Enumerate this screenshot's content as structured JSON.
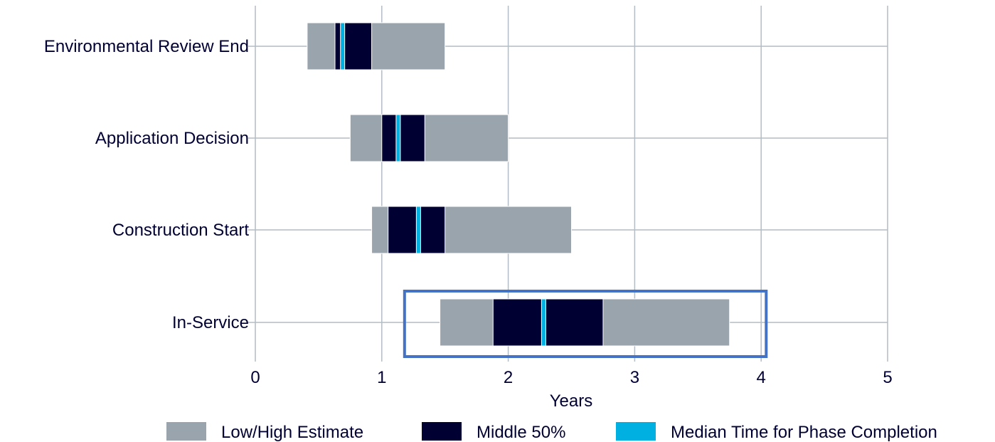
{
  "chart_data": {
    "type": "bar",
    "orientation": "horizontal",
    "categories": [
      "Environmental Review End",
      "Application Decision",
      "Construction Start",
      "In-Service"
    ],
    "xlabel": "Years",
    "ylabel": "",
    "xlim": [
      0,
      5
    ],
    "xticks": [
      0,
      1,
      2,
      3,
      4,
      5
    ],
    "grid": true,
    "legend_placement": "bottom",
    "series": [
      {
        "name": "Low/High Estimate",
        "color": "#9aa4ad",
        "ranges": [
          [
            0.41,
            1.5
          ],
          [
            0.75,
            2.0
          ],
          [
            0.92,
            2.5
          ],
          [
            1.46,
            3.75
          ]
        ]
      },
      {
        "name": "Middle 50%",
        "color": "#000033",
        "ranges": [
          [
            0.63,
            0.92
          ],
          [
            1.0,
            1.34
          ],
          [
            1.05,
            1.5
          ],
          [
            1.88,
            2.75
          ]
        ]
      },
      {
        "name": "Median Time for Phase Completion",
        "color": "#00b0e0",
        "values": [
          0.69,
          1.13,
          1.29,
          2.28
        ]
      }
    ],
    "highlight": {
      "category": "In-Service",
      "x_range": [
        1.18,
        4.04
      ],
      "color": "#4472c4"
    }
  }
}
